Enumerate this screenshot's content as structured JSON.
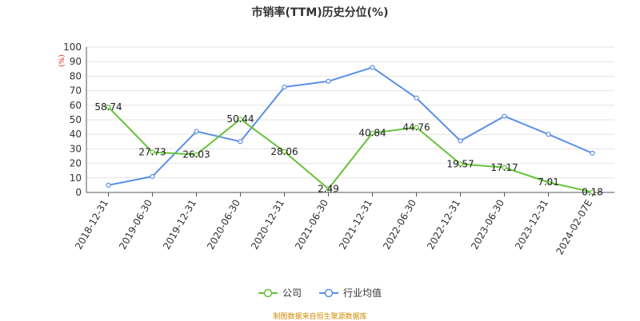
{
  "chart_data": {
    "type": "line",
    "title": "市销率(TTM)历史分位(%)",
    "ylabel": "(%)",
    "ylim": [
      0,
      100
    ],
    "yticks": [
      0,
      10,
      20,
      30,
      40,
      50,
      60,
      70,
      80,
      90,
      100
    ],
    "categories": [
      "2018-12-31",
      "2019-06-30",
      "2019-12-31",
      "2020-06-30",
      "2020-12-31",
      "2021-06-30",
      "2021-12-31",
      "2022-06-30",
      "2022-12-31",
      "2023-06-30",
      "2023-12-31",
      "2024-02-07E"
    ],
    "series": [
      {
        "name": "公司",
        "color": "#66c23a",
        "values": [
          58.74,
          27.73,
          26.03,
          50.44,
          28.06,
          2.49,
          40.84,
          44.76,
          19.57,
          17.17,
          7.01,
          0.18
        ],
        "show_labels": true
      },
      {
        "name": "行业均值",
        "color": "#5b8ee6",
        "values": [
          5,
          11,
          42,
          35,
          72.5,
          76.5,
          86,
          65,
          35.5,
          52.5,
          40,
          27
        ],
        "show_labels": false
      }
    ],
    "grid": true,
    "legend_position": "bottom-center",
    "source": "制图数据来自恒生聚源数据库"
  }
}
